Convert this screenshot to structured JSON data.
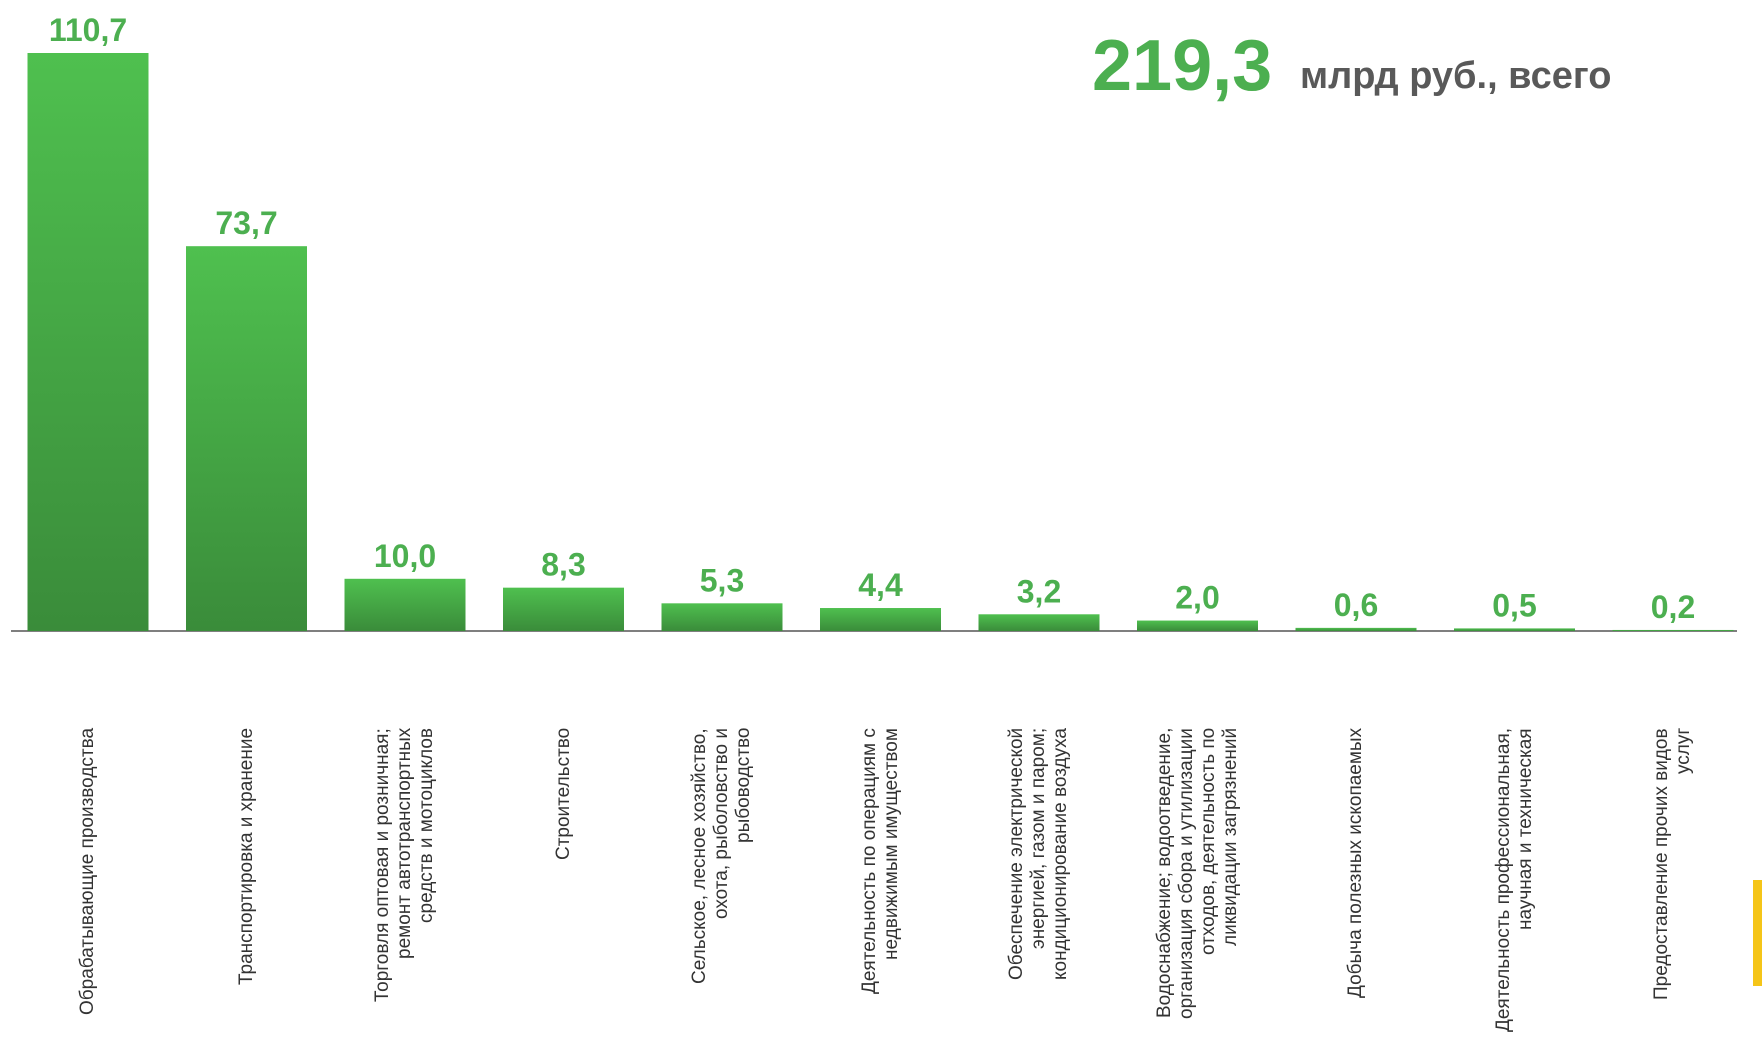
{
  "chart_data": {
    "type": "bar",
    "total_label": "219,3",
    "total_unit": "млрд руб., всего",
    "categories": [
      "Обрабатывающие производства",
      "Транспортировка и хранение",
      "Торговля оптовая и розничная; ремонт автотранспортных средств и мотоциклов",
      "Строительство",
      "Сельское, лесное хозяйство, охота, рыболовство и рыбоводство",
      "Деятельность по операциям с недвижимым имуществом",
      "Обеспечение электрической энергией, газом и паром; кондиционирование воздуха",
      "Водоснабжение; водоотведение, организация сбора и утилизации отходов, деятельность по ликвидации загрязнений",
      "Добыча полезных ископаемых",
      "Деятельность профессиональная, научная и техническая",
      "Предоставление прочих видов услуг"
    ],
    "values": [
      110.7,
      73.7,
      10.0,
      8.3,
      5.3,
      4.4,
      3.2,
      2.0,
      0.6,
      0.5,
      0.2
    ],
    "value_labels": [
      "110,7",
      "73,7",
      "10,0",
      "8,3",
      "5,3",
      "4,4",
      "3,2",
      "2,0",
      "0,6",
      "0,5",
      "0,2"
    ],
    "color": "#4cb84c",
    "label_color": "#4caf50"
  }
}
